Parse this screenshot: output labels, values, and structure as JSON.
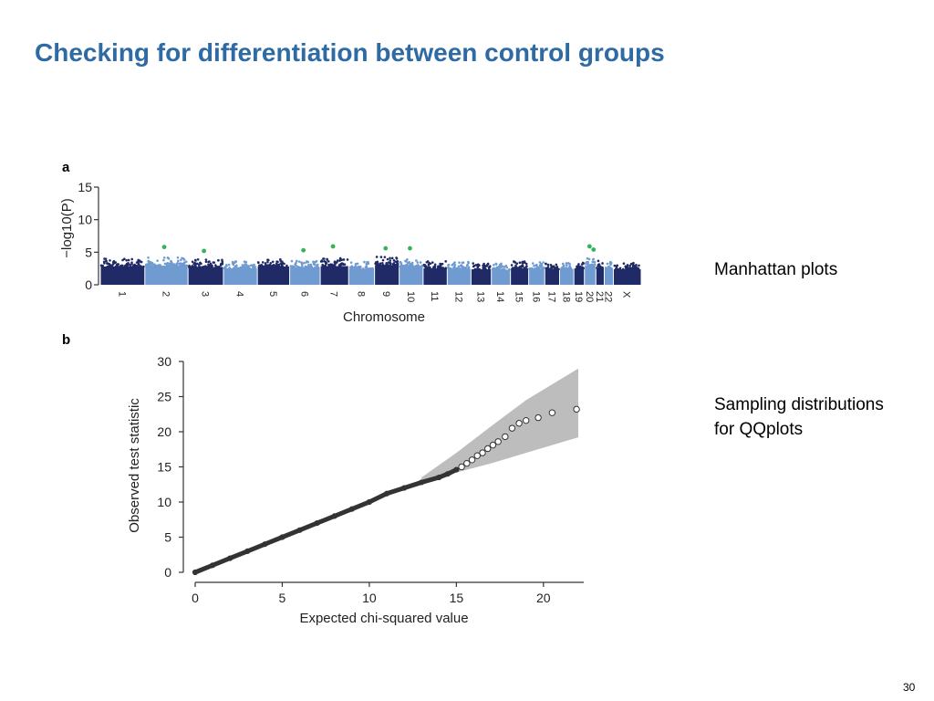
{
  "slide": {
    "title": "Checking for differentiation between control groups",
    "label_manhattan": "Manhattan plots",
    "label_qq": "Sampling distributions for QQplots",
    "page_number": "30"
  },
  "colors": {
    "title": "#2e6aa3",
    "chrom_dark": "#1f2a66",
    "chrom_light": "#6f9bd1",
    "highlight": "#33b35a",
    "band": "#bdbdbd",
    "points": "#333333"
  },
  "chart_data": [
    {
      "type": "scatter",
      "panel_label": "a",
      "title": "",
      "xlabel": "Chromosome",
      "ylabel": "−log10(P)",
      "ylim": [
        0,
        15
      ],
      "yticks": [
        0,
        5,
        10,
        15
      ],
      "categories": [
        "1",
        "2",
        "3",
        "4",
        "5",
        "6",
        "7",
        "8",
        "9",
        "10",
        "11",
        "12",
        "13",
        "14",
        "15",
        "16",
        "17",
        "18",
        "19",
        "20",
        "21",
        "22",
        "X"
      ],
      "baseline_max": [
        4.0,
        4.2,
        3.9,
        3.6,
        4.0,
        3.8,
        4.1,
        3.5,
        4.3,
        4.0,
        3.6,
        3.5,
        3.4,
        3.3,
        3.6,
        3.5,
        3.4,
        3.5,
        3.6,
        4.3,
        3.7,
        3.6,
        3.4
      ],
      "highlighted_points": [
        {
          "chromosome": "2",
          "value": 5.8
        },
        {
          "chromosome": "3",
          "value": 5.2
        },
        {
          "chromosome": "6",
          "value": 5.3
        },
        {
          "chromosome": "7",
          "value": 5.9
        },
        {
          "chromosome": "9",
          "value": 5.6
        },
        {
          "chromosome": "10",
          "value": 5.6
        },
        {
          "chromosome": "20",
          "value": 5.9
        },
        {
          "chromosome": "20",
          "value": 5.4
        }
      ],
      "legend": "none"
    },
    {
      "type": "scatter",
      "panel_label": "b",
      "title": "",
      "xlabel": "Expected chi-squared value",
      "ylabel": "Observed test statistic",
      "xlim": [
        0,
        22
      ],
      "ylim": [
        0,
        30
      ],
      "xticks": [
        0,
        5,
        10,
        15,
        20
      ],
      "yticks": [
        0,
        5,
        10,
        15,
        20,
        25,
        30
      ],
      "series": [
        {
          "name": "",
          "x": [
            0,
            1,
            2,
            3,
            4,
            5,
            6,
            7,
            8,
            9,
            10,
            11,
            12,
            13,
            14,
            14.5,
            15,
            15.3,
            15.6,
            15.9,
            16.2,
            16.5,
            16.8,
            17.1,
            17.4,
            17.8,
            18.2,
            18.6,
            19.0,
            19.7,
            20.5,
            21.9
          ],
          "y": [
            0,
            1.0,
            2.0,
            3.0,
            4.0,
            5.0,
            6.0,
            7.0,
            8.0,
            9.0,
            10.0,
            11.2,
            12.0,
            12.8,
            13.5,
            14.0,
            14.6,
            15.0,
            15.5,
            16.0,
            16.6,
            17.0,
            17.6,
            18.1,
            18.6,
            19.3,
            20.5,
            21.2,
            21.6,
            22.0,
            22.7,
            23.2
          ]
        }
      ],
      "confidence_band": {
        "x": [
          13,
          15,
          17,
          19,
          22
        ],
        "upper": [
          13.5,
          17.0,
          20.8,
          24.5,
          29.0
        ],
        "lower": [
          12.5,
          14.2,
          15.5,
          17.0,
          19.2
        ]
      },
      "legend": "none"
    }
  ]
}
